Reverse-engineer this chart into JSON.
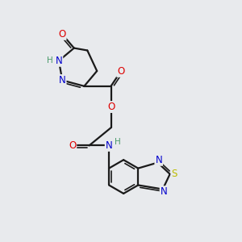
{
  "background_color": "#e8eaed",
  "bond_color": "#1a1a1a",
  "atom_colors": {
    "O": "#dd0000",
    "N": "#0000cc",
    "S": "#bbbb00",
    "H": "#4a9a6a",
    "C": "#1a1a1a"
  },
  "figsize": [
    3.0,
    3.0
  ],
  "dpi": 100
}
